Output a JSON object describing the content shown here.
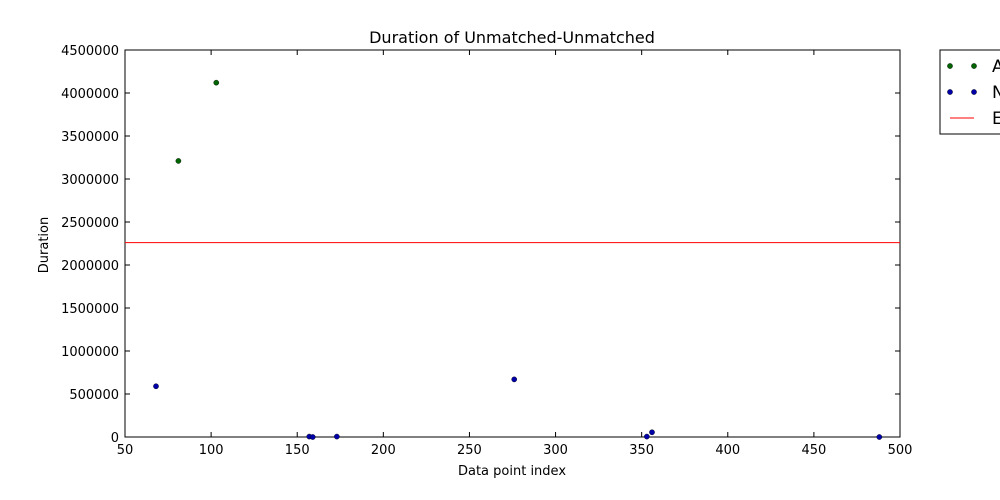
{
  "chart_data": {
    "type": "scatter",
    "title": "Duration of Unmatched-Unmatched",
    "xlabel": "Data point index",
    "ylabel": "Duration",
    "xlim": [
      50,
      500
    ],
    "ylim": [
      0,
      4500000
    ],
    "xticks": [
      50,
      100,
      150,
      200,
      250,
      300,
      350,
      400,
      450,
      500
    ],
    "yticks": [
      0,
      500000,
      1000000,
      1500000,
      2000000,
      2500000,
      3000000,
      3500000,
      4000000,
      4500000
    ],
    "legend_placement": "outside-top-right",
    "series": [
      {
        "name": "A",
        "kind": "scatter",
        "color": "#006400",
        "points": [
          [
            81,
            3210000
          ],
          [
            103,
            4120000
          ]
        ]
      },
      {
        "name": "N",
        "kind": "scatter",
        "color": "#0000aa",
        "points": [
          [
            68,
            590000
          ],
          [
            157,
            5000
          ],
          [
            159,
            0
          ],
          [
            173,
            5000
          ],
          [
            276,
            670000
          ],
          [
            353,
            5000
          ],
          [
            356,
            55000
          ],
          [
            488,
            0
          ]
        ]
      },
      {
        "name": "E",
        "kind": "hline",
        "color": "#ff0000",
        "y": 2260000
      }
    ]
  }
}
